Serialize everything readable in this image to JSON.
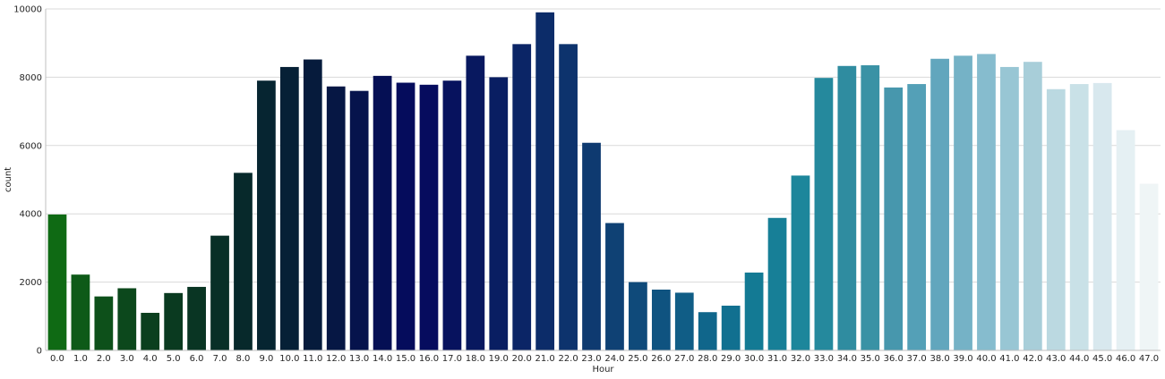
{
  "chart_data": {
    "type": "bar",
    "title": "",
    "xlabel": "Hour",
    "ylabel": "count",
    "ylim": [
      0,
      10000
    ],
    "yticks": [
      0,
      2000,
      4000,
      6000,
      8000,
      10000
    ],
    "grid": "horizontal",
    "categories": [
      "0.0",
      "1.0",
      "2.0",
      "3.0",
      "4.0",
      "5.0",
      "6.0",
      "7.0",
      "8.0",
      "9.0",
      "10.0",
      "11.0",
      "12.0",
      "13.0",
      "14.0",
      "15.0",
      "16.0",
      "17.0",
      "18.0",
      "19.0",
      "20.0",
      "21.0",
      "22.0",
      "23.0",
      "24.0",
      "25.0",
      "26.0",
      "27.0",
      "28.0",
      "29.0",
      "30.0",
      "31.0",
      "32.0",
      "33.0",
      "34.0",
      "35.0",
      "36.0",
      "37.0",
      "38.0",
      "39.0",
      "40.0",
      "41.0",
      "42.0",
      "43.0",
      "44.0",
      "45.0",
      "46.0",
      "47.0"
    ],
    "values": [
      3980,
      2220,
      1580,
      1820,
      1100,
      1680,
      1860,
      3360,
      5200,
      7900,
      8300,
      8520,
      7730,
      7600,
      8040,
      7840,
      7780,
      7900,
      8630,
      8000,
      8970,
      9900,
      8970,
      6080,
      3730,
      2000,
      1780,
      1690,
      1120,
      1310,
      2280,
      3880,
      5120,
      7980,
      8330,
      8350,
      7700,
      7800,
      8540,
      8630,
      8680,
      8300,
      8450,
      7650,
      7800,
      7830,
      6450,
      4880
    ],
    "colors": [
      "#0f6a14",
      "#0e5a18",
      "#0d501a",
      "#0c481c",
      "#0b3f1e",
      "#0a3a20",
      "#093523",
      "#082f27",
      "#07292b",
      "#062531",
      "#062036",
      "#061b3c",
      "#061744",
      "#06134c",
      "#050f54",
      "#050c5c",
      "#060c5e",
      "#07125e",
      "#08185f",
      "#091e62",
      "#0b2566",
      "#0c2c69",
      "#0d336d",
      "#0e3a70",
      "#0f4174",
      "#0f4a7a",
      "#0f5380",
      "#105d86",
      "#10668b",
      "#117090",
      "#137a94",
      "#177f97",
      "#1d869b",
      "#25899d",
      "#2f8ca0",
      "#3a92a5",
      "#4797ad",
      "#54a0b7",
      "#62a6bd",
      "#75b2c6",
      "#86bcce",
      "#98c6d4",
      "#a8ced9",
      "#bbd9e1",
      "#c9e1e7",
      "#d8e8ee",
      "#e5f0f3",
      "#eff5f6"
    ]
  }
}
